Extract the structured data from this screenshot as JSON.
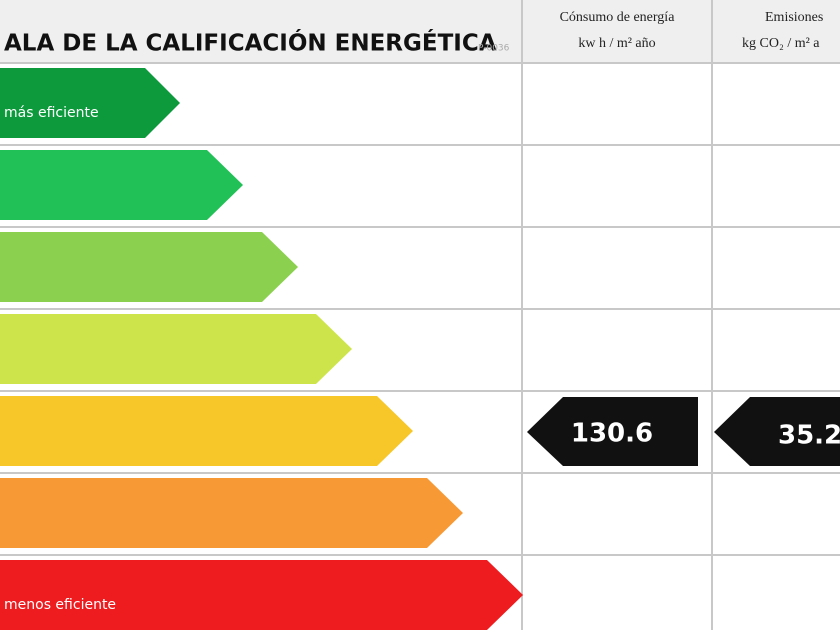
{
  "header": {
    "title": "ALA DE LA CALIFICACIÓN ENERGÉTICA",
    "code": "P-0036",
    "columns": [
      {
        "line1": "Cónsumo de energía",
        "line2": "kw h / m² año"
      },
      {
        "line1": "Emisiones",
        "line2": "kg CO₂ / m² a"
      }
    ]
  },
  "scale": {
    "top_label": "más eficiente",
    "bottom_label": "menos eficiente"
  },
  "ratings": {
    "energy": 130.6,
    "emissions": 35.2
  }
}
